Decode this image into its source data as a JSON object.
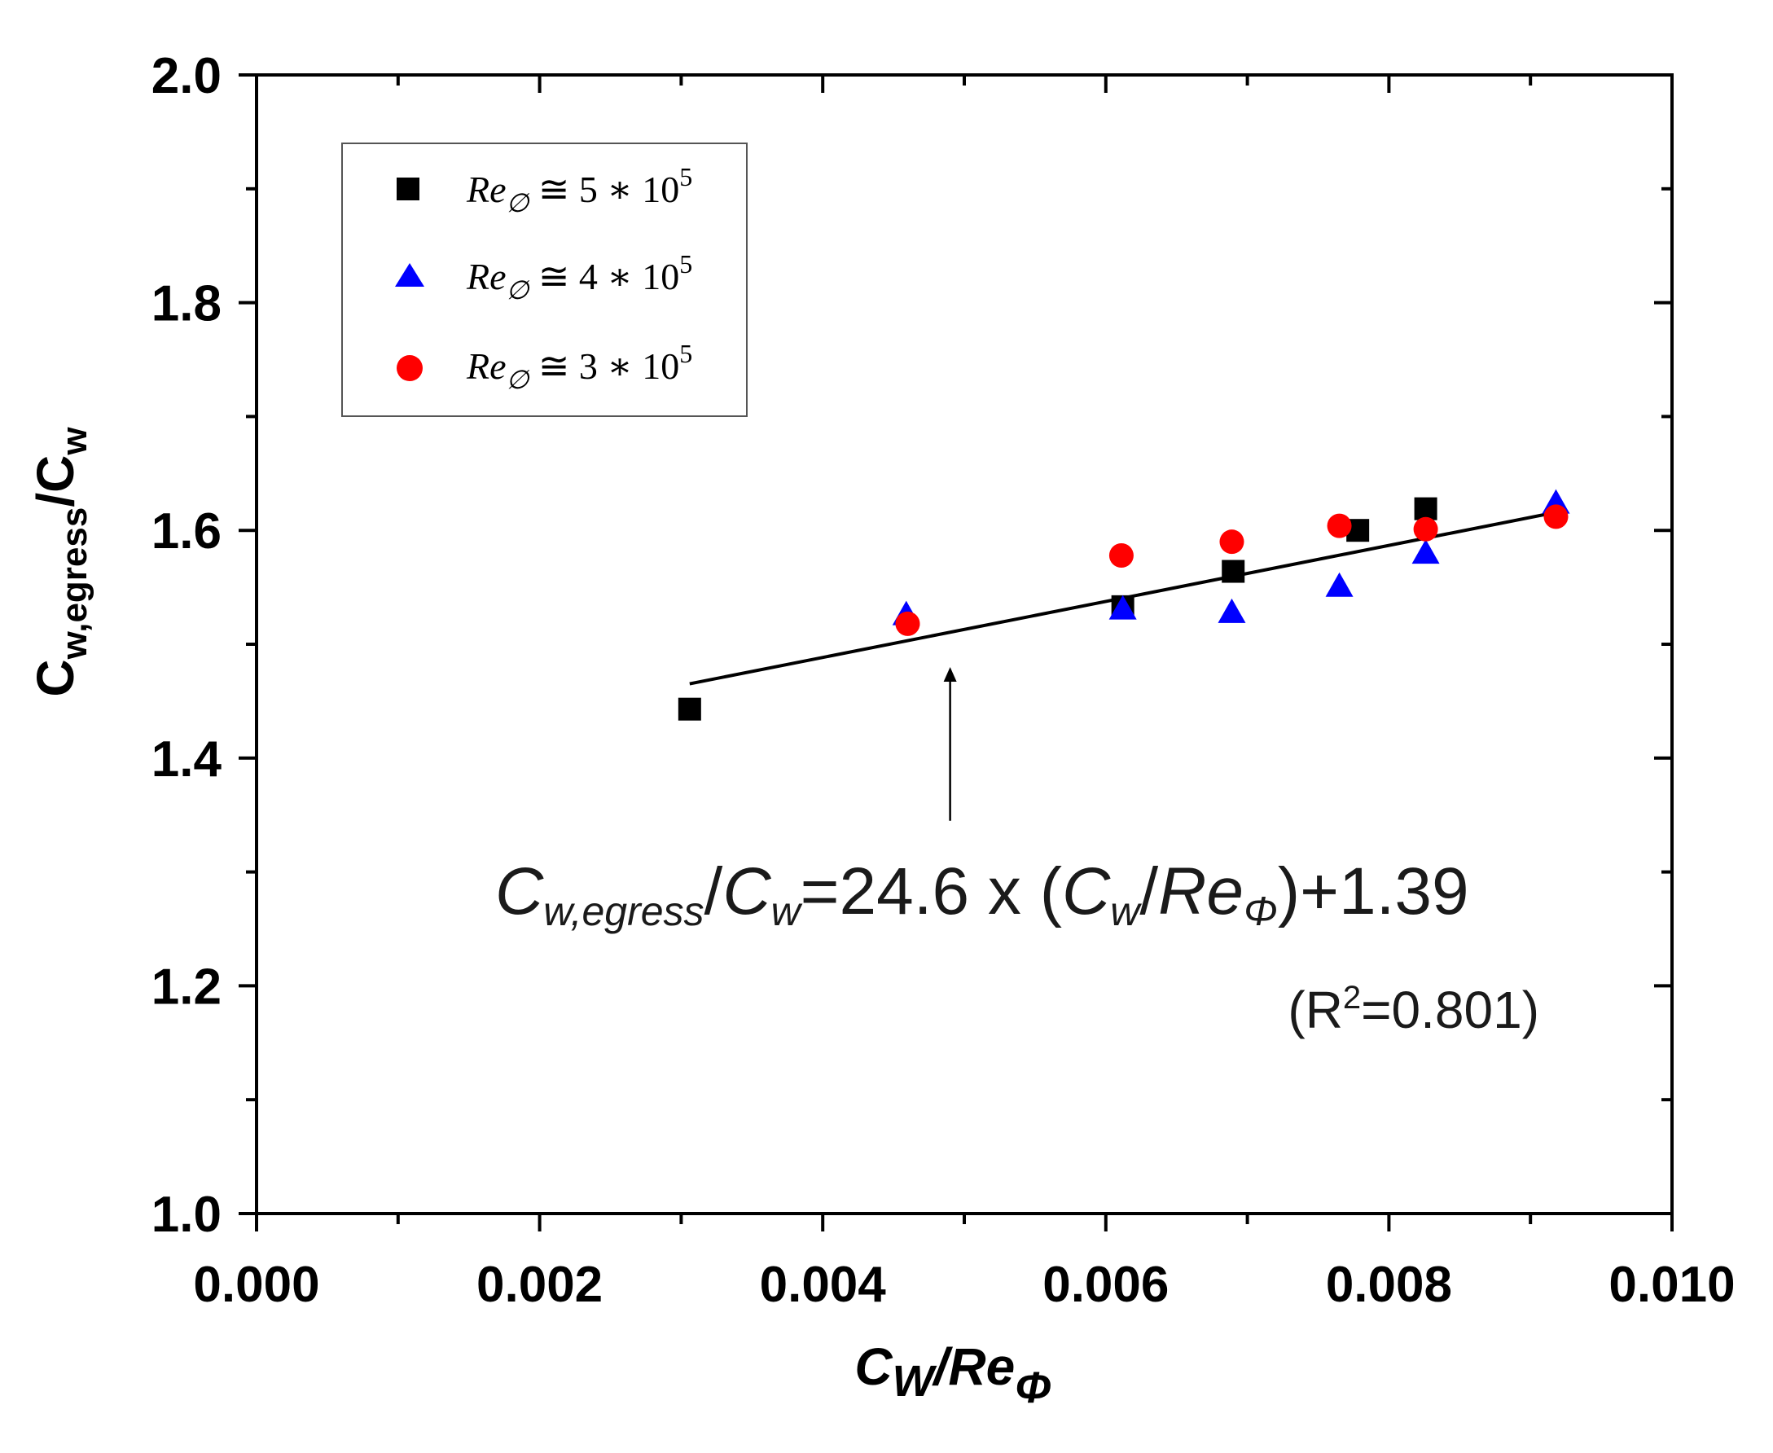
{
  "chart_data": {
    "type": "scatter",
    "xlabel": {
      "main": "C",
      "sub": "W",
      "div": "/Re",
      "sub2": "Φ"
    },
    "ylabel": {
      "main": "C",
      "sub": "w,egress",
      "div": "/C",
      "sub2": "w"
    },
    "xlim": [
      0.0,
      0.01
    ],
    "ylim": [
      1.0,
      2.0
    ],
    "x_ticks": [
      "0.000",
      "0.002",
      "0.004",
      "0.006",
      "0.008",
      "0.010"
    ],
    "y_ticks": [
      "1.0",
      "1.2",
      "1.4",
      "1.6",
      "1.8",
      "2.0"
    ],
    "legend_position": "top-left",
    "series": [
      {
        "name": "Re_Φ ≅ 5 * 10^5",
        "legend": {
          "base": "Re",
          "sub": "∅",
          "rel": " ≅ 5 ∗ 10",
          "sup": "5"
        },
        "marker": "square",
        "color": "#000000",
        "x": [
          0.00306,
          0.00612,
          0.0069,
          0.00778,
          0.00826
        ],
        "y": [
          1.443,
          1.533,
          1.564,
          1.6,
          1.619
        ]
      },
      {
        "name": "Re_Φ ≅ 4 * 10^5",
        "legend": {
          "base": "Re",
          "sub": "∅",
          "rel": " ≅ 4 ∗ 10",
          "sup": "5"
        },
        "marker": "triangle",
        "color": "#0000ff",
        "x": [
          0.00459,
          0.00612,
          0.00689,
          0.00765,
          0.00826,
          0.00918
        ],
        "y": [
          1.526,
          1.531,
          1.528,
          1.551,
          1.58,
          1.624
        ]
      },
      {
        "name": "Re_Φ ≅ 3 * 10^5",
        "legend": {
          "base": "Re",
          "sub": "∅",
          "rel": " ≅ 3 ∗ 10",
          "sup": "5"
        },
        "marker": "circle",
        "color": "#ff0000",
        "x": [
          0.0046,
          0.00611,
          0.00689,
          0.00765,
          0.00826,
          0.00918
        ],
        "y": [
          1.518,
          1.578,
          1.59,
          1.604,
          1.601,
          1.612
        ]
      }
    ],
    "fit_line": {
      "slope": 24.6,
      "intercept": 1.39,
      "x_range": [
        0.00306,
        0.00918
      ],
      "color": "#000000"
    },
    "annotation": {
      "arrow_x": 0.0049,
      "arrow_from_y": 1.345,
      "arrow_to_y": 1.48,
      "equation": {
        "c1": "C",
        "c1_sub": "w,egress",
        "slash1": "/",
        "c2": "C",
        "c2_sub": "w",
        "mid": "=24.6 x (",
        "c3": "C",
        "c3_sub": "w",
        "slash2": "/",
        "re": "Re",
        "re_sub": "Φ",
        "end": ")+1.39"
      },
      "r2": {
        "pre": "(R",
        "sup": "2",
        "post": "=0.801)"
      }
    }
  }
}
